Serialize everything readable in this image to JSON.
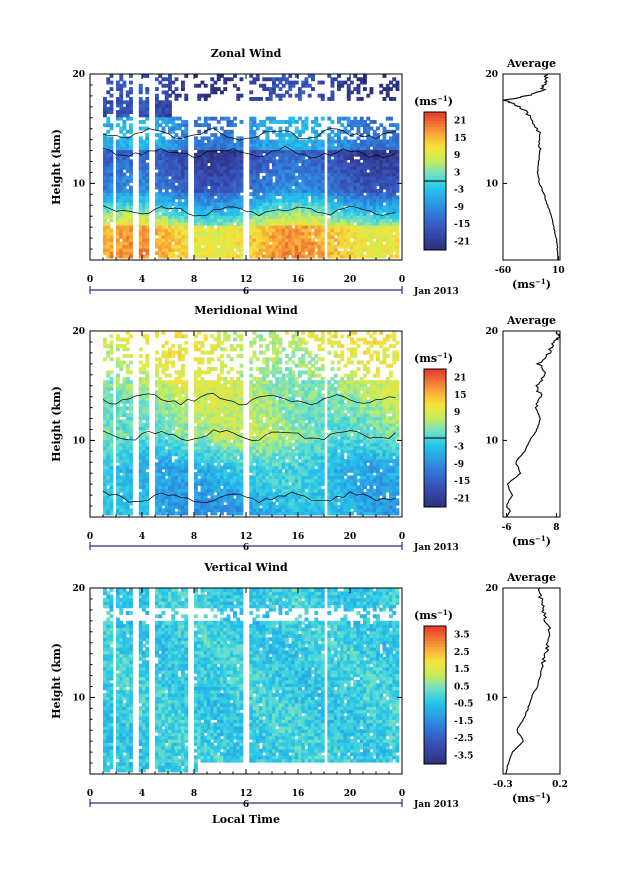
{
  "chart_data": [
    {
      "type": "heatmap",
      "title": "Zonal Wind",
      "ylabel": "Height (km)",
      "xlabel": "",
      "x_ticks": [
        "0",
        "4",
        "8",
        "12",
        "16",
        "20",
        "0"
      ],
      "y_ticks": [
        "10",
        "20"
      ],
      "xlim": [
        0,
        24
      ],
      "ylim": [
        3,
        20
      ],
      "date_label": "6",
      "month_label": "Jan 2013",
      "colorbar": {
        "unit": "(ms⁻¹)",
        "ticks": [
          "21",
          "15",
          "9",
          "3",
          "-3",
          "-9",
          "-15",
          "-21"
        ],
        "range": [
          -24,
          24
        ]
      },
      "profile": {
        "title": "Average",
        "xlabel": "(ms⁻¹)",
        "x_ticks": [
          "-60",
          "10"
        ],
        "xlim": [
          -60,
          12
        ],
        "ylim": [
          3,
          20
        ],
        "y_ticks": [
          "10",
          "20"
        ]
      },
      "profile_points": [
        [
          3,
          10
        ],
        [
          4,
          9
        ],
        [
          5,
          7
        ],
        [
          6,
          4
        ],
        [
          7,
          1
        ],
        [
          8,
          -4
        ],
        [
          9,
          -8
        ],
        [
          10,
          -14
        ],
        [
          11,
          -16
        ],
        [
          12,
          -15
        ],
        [
          13,
          -14
        ],
        [
          14,
          -12
        ],
        [
          15,
          -16
        ],
        [
          16,
          -24
        ],
        [
          17,
          -38
        ],
        [
          17.6,
          -58
        ],
        [
          18,
          -30
        ],
        [
          18.5,
          -10
        ],
        [
          19,
          -8
        ],
        [
          19.5,
          -6
        ],
        [
          20,
          -5
        ]
      ]
    },
    {
      "type": "heatmap",
      "title": "Meridional Wind",
      "ylabel": "Height (km)",
      "xlabel": "",
      "x_ticks": [
        "0",
        "4",
        "8",
        "12",
        "16",
        "20",
        "0"
      ],
      "y_ticks": [
        "10",
        "20"
      ],
      "xlim": [
        0,
        24
      ],
      "ylim": [
        3,
        20
      ],
      "date_label": "6",
      "month_label": "Jan 2013",
      "colorbar": {
        "unit": "(ms⁻¹)",
        "ticks": [
          "21",
          "15",
          "9",
          "3",
          "-3",
          "-9",
          "-15",
          "-21"
        ],
        "range": [
          -24,
          24
        ]
      },
      "profile": {
        "title": "Average",
        "xlabel": "(ms⁻¹)",
        "x_ticks": [
          "-6",
          "8"
        ],
        "xlim": [
          -7,
          9
        ],
        "ylim": [
          3,
          20
        ],
        "y_ticks": [
          "10",
          "20"
        ]
      },
      "profile_points": [
        [
          3,
          -6
        ],
        [
          3.5,
          -5
        ],
        [
          4,
          -6
        ],
        [
          5,
          -4.5
        ],
        [
          6,
          -5.8
        ],
        [
          7,
          -2
        ],
        [
          8,
          -3.5
        ],
        [
          9,
          -1
        ],
        [
          10,
          0.5
        ],
        [
          11,
          2.5
        ],
        [
          12,
          3.5
        ],
        [
          13,
          2
        ],
        [
          14,
          4
        ],
        [
          15,
          2
        ],
        [
          16,
          5
        ],
        [
          17,
          3
        ],
        [
          18,
          6
        ],
        [
          19,
          7
        ],
        [
          19.5,
          8.8
        ],
        [
          20,
          8
        ]
      ]
    },
    {
      "type": "heatmap",
      "title": "Vertical Wind",
      "ylabel": "Height (km)",
      "xlabel": "Local Time",
      "x_ticks": [
        "0",
        "4",
        "8",
        "12",
        "16",
        "20",
        "0"
      ],
      "y_ticks": [
        "10",
        "20"
      ],
      "xlim": [
        0,
        24
      ],
      "ylim": [
        3,
        20
      ],
      "date_label": "6",
      "month_label": "Jan 2013",
      "colorbar": {
        "unit": "(ms⁻¹)",
        "ticks": [
          "3.5",
          "2.5",
          "1.5",
          "0.5",
          "-0.5",
          "-1.5",
          "-2.5",
          "-3.5"
        ],
        "range": [
          -4,
          4
        ]
      },
      "profile": {
        "title": "Average",
        "xlabel": "(ms⁻¹)",
        "x_ticks": [
          "-0.3",
          "0.2"
        ],
        "xlim": [
          -0.3,
          0.2
        ],
        "ylim": [
          3,
          20
        ],
        "y_ticks": [
          "10",
          "20"
        ]
      },
      "profile_points": [
        [
          3,
          -0.28
        ],
        [
          4,
          -0.25
        ],
        [
          5,
          -0.22
        ],
        [
          6,
          -0.12
        ],
        [
          7,
          -0.18
        ],
        [
          8,
          -0.12
        ],
        [
          9,
          -0.08
        ],
        [
          10,
          -0.05
        ],
        [
          11,
          0
        ],
        [
          12,
          0.03
        ],
        [
          13,
          0.05
        ],
        [
          14,
          0.07
        ],
        [
          15,
          0.1
        ],
        [
          16,
          0.12
        ],
        [
          17,
          0.08
        ],
        [
          18,
          0.05
        ],
        [
          19,
          0.03
        ],
        [
          20,
          0.02
        ]
      ]
    }
  ]
}
